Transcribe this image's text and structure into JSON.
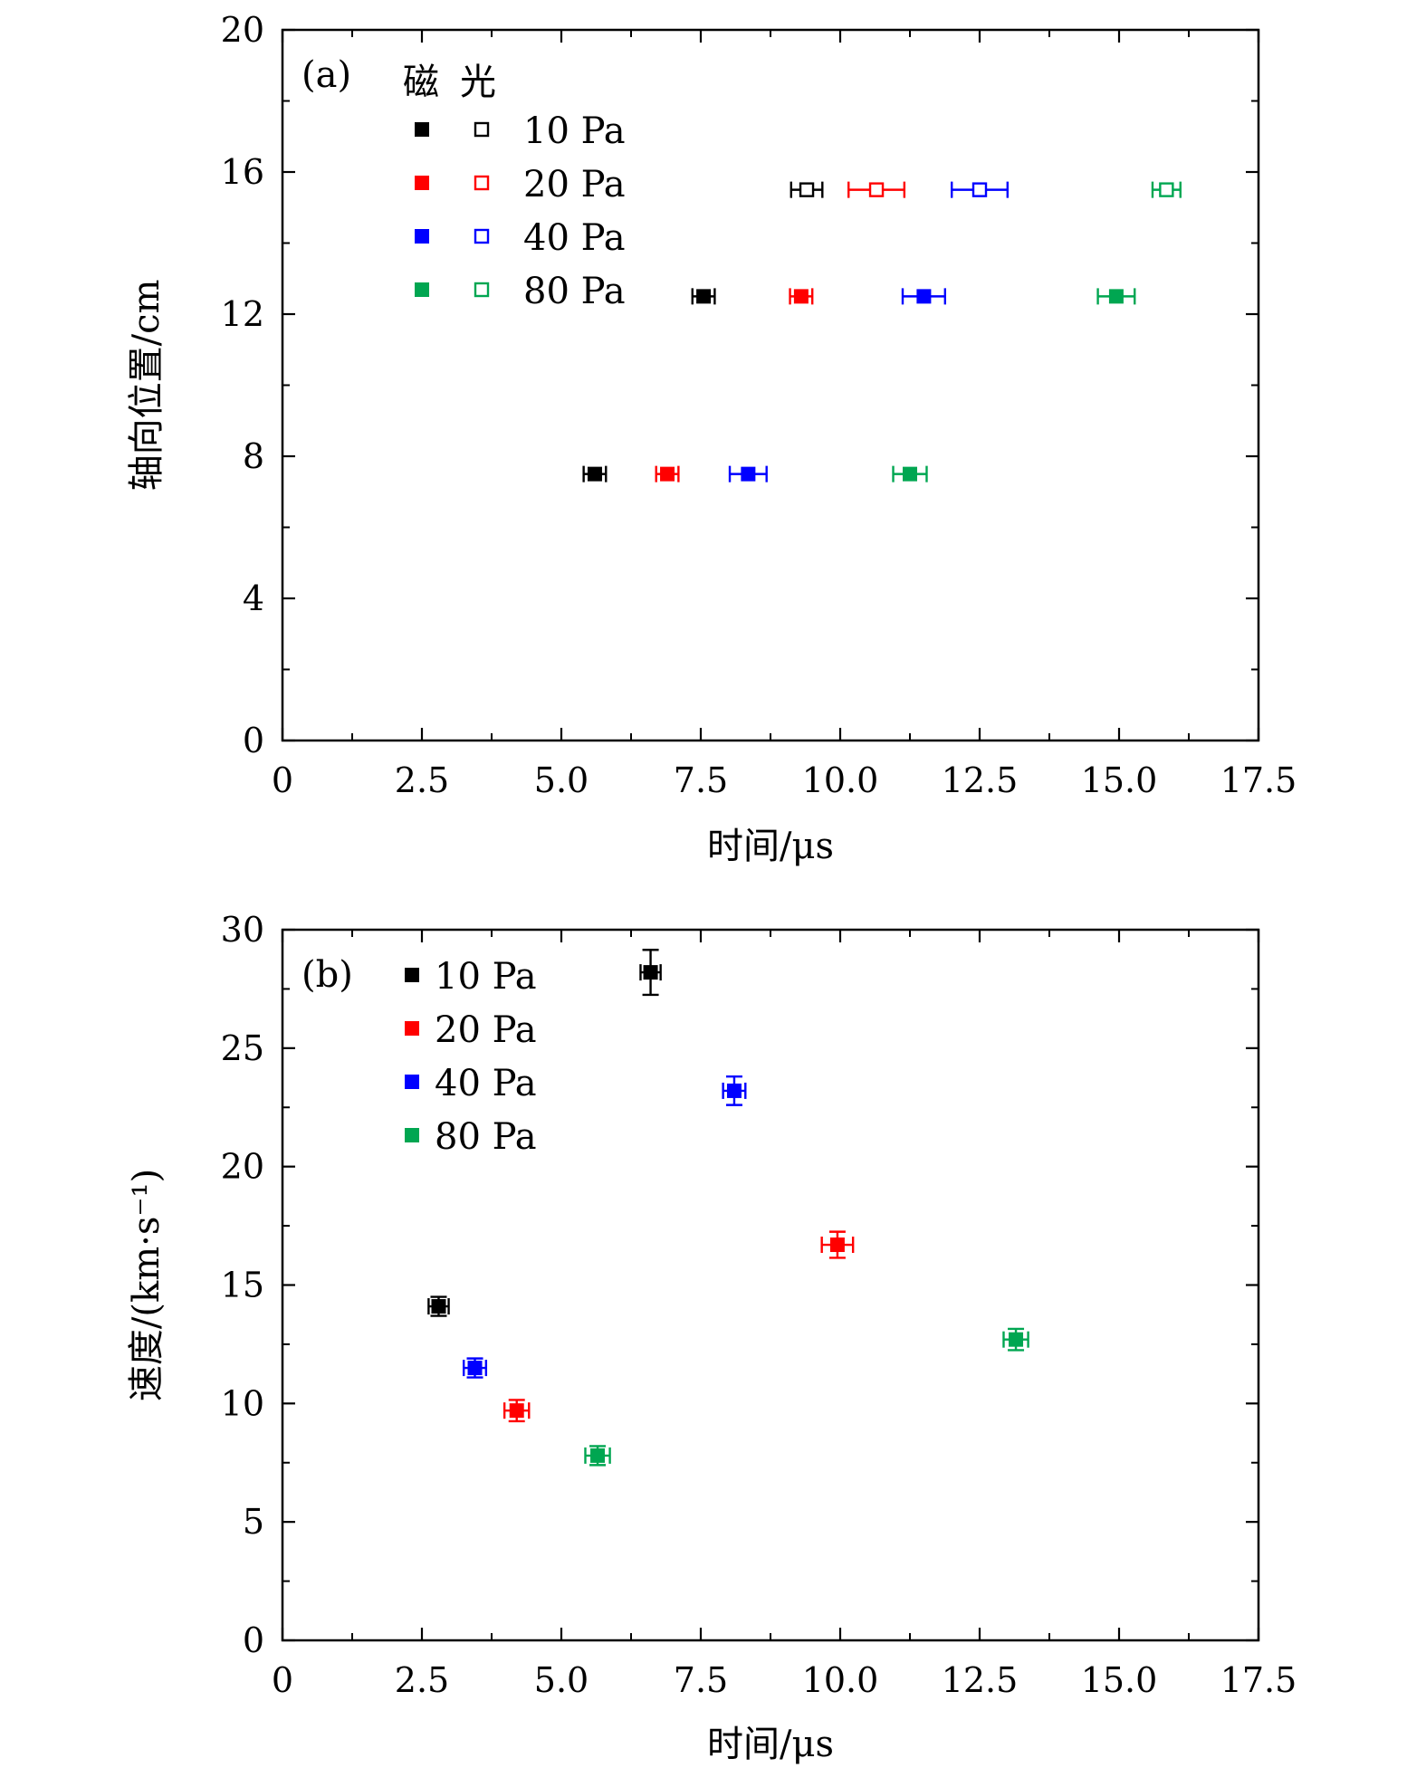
{
  "chart_data": [
    {
      "type": "scatter",
      "panel_label": "(a)",
      "xlabel": "时间/μs",
      "ylabel": "轴向位置/cm",
      "xlim": [
        0,
        17.5
      ],
      "ylim": [
        0,
        20
      ],
      "xticks": [
        "0",
        "2.5",
        "5.0",
        "7.5",
        "10.0",
        "12.5",
        "15.0",
        "17.5"
      ],
      "yticks": [
        "0",
        "4",
        "8",
        "12",
        "16",
        "20"
      ],
      "legend_headers": [
        "磁",
        "光"
      ],
      "series": [
        {
          "name": "10 Pa",
          "color": "#000000",
          "magnetic": [
            {
              "x": 5.6,
              "y": 7.5,
              "xerr": 0.2
            },
            {
              "x": 7.55,
              "y": 12.5,
              "xerr": 0.2
            }
          ],
          "optical": [
            {
              "x": 9.4,
              "y": 15.5,
              "xerr": 0.28
            }
          ]
        },
        {
          "name": "20 Pa",
          "color": "#ff0000",
          "magnetic": [
            {
              "x": 6.9,
              "y": 7.5,
              "xerr": 0.2
            },
            {
              "x": 9.3,
              "y": 12.5,
              "xerr": 0.2
            }
          ],
          "optical": [
            {
              "x": 10.65,
              "y": 15.5,
              "xerr": 0.5
            }
          ]
        },
        {
          "name": "40 Pa",
          "color": "#0000ff",
          "magnetic": [
            {
              "x": 8.35,
              "y": 7.5,
              "xerr": 0.33
            },
            {
              "x": 11.5,
              "y": 12.5,
              "xerr": 0.38
            }
          ],
          "optical": [
            {
              "x": 12.5,
              "y": 15.5,
              "xerr": 0.5
            }
          ]
        },
        {
          "name": "80 Pa",
          "color": "#00a651",
          "magnetic": [
            {
              "x": 11.25,
              "y": 7.5,
              "xerr": 0.3
            },
            {
              "x": 14.95,
              "y": 12.5,
              "xerr": 0.33
            }
          ],
          "optical": [
            {
              "x": 15.85,
              "y": 15.5,
              "xerr": 0.25
            }
          ]
        }
      ]
    },
    {
      "type": "scatter",
      "panel_label": "(b)",
      "xlabel": "时间/μs",
      "ylabel": "速度/(km·s⁻¹)",
      "xlim": [
        0,
        17.5
      ],
      "ylim": [
        0,
        30
      ],
      "xticks": [
        "0",
        "2.5",
        "5.0",
        "7.5",
        "10.0",
        "12.5",
        "15.0",
        "17.5"
      ],
      "yticks": [
        "0",
        "5",
        "10",
        "15",
        "20",
        "25",
        "30"
      ],
      "series": [
        {
          "name": "10 Pa",
          "color": "#000000",
          "points": [
            {
              "x": 2.8,
              "y": 14.1,
              "xerr": 0.18,
              "yerr": 0.4
            },
            {
              "x": 6.6,
              "y": 28.2,
              "xerr": 0.18,
              "yerr": 0.95
            }
          ]
        },
        {
          "name": "20 Pa",
          "color": "#ff0000",
          "points": [
            {
              "x": 4.2,
              "y": 9.7,
              "xerr": 0.22,
              "yerr": 0.45
            },
            {
              "x": 9.95,
              "y": 16.7,
              "xerr": 0.28,
              "yerr": 0.55
            }
          ]
        },
        {
          "name": "40 Pa",
          "color": "#0000ff",
          "points": [
            {
              "x": 3.45,
              "y": 11.5,
              "xerr": 0.2,
              "yerr": 0.4
            },
            {
              "x": 8.1,
              "y": 23.2,
              "xerr": 0.2,
              "yerr": 0.6
            }
          ]
        },
        {
          "name": "80 Pa",
          "color": "#00a651",
          "points": [
            {
              "x": 5.65,
              "y": 7.8,
              "xerr": 0.22,
              "yerr": 0.4
            },
            {
              "x": 13.15,
              "y": 12.7,
              "xerr": 0.22,
              "yerr": 0.45
            }
          ]
        }
      ]
    }
  ]
}
